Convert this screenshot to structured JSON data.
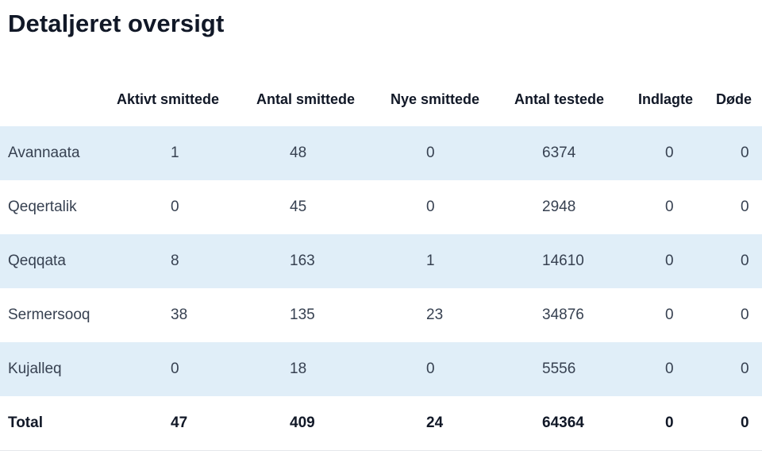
{
  "page_title": "Detaljeret oversigt",
  "columns": [
    "Aktivt smittede",
    "Antal smittede",
    "Nye smittede",
    "Antal testede",
    "Indlagte",
    "Døde"
  ],
  "rows": [
    {
      "name": "Avannaata",
      "values": [
        "1",
        "48",
        "0",
        "6374",
        "0",
        "0"
      ]
    },
    {
      "name": "Qeqertalik",
      "values": [
        "0",
        "45",
        "0",
        "2948",
        "0",
        "0"
      ]
    },
    {
      "name": "Qeqqata",
      "values": [
        "8",
        "163",
        "1",
        "14610",
        "0",
        "0"
      ]
    },
    {
      "name": "Sermersooq",
      "values": [
        "38",
        "135",
        "23",
        "34876",
        "0",
        "0"
      ]
    },
    {
      "name": "Kujalleq",
      "values": [
        "0",
        "18",
        "0",
        "5556",
        "0",
        "0"
      ]
    }
  ],
  "total": {
    "name": "Total",
    "values": [
      "47",
      "409",
      "24",
      "64364",
      "0",
      "0"
    ]
  },
  "colors": {
    "row_stripe": "#e0eef8",
    "heading": "#111827",
    "text": "#374151"
  }
}
